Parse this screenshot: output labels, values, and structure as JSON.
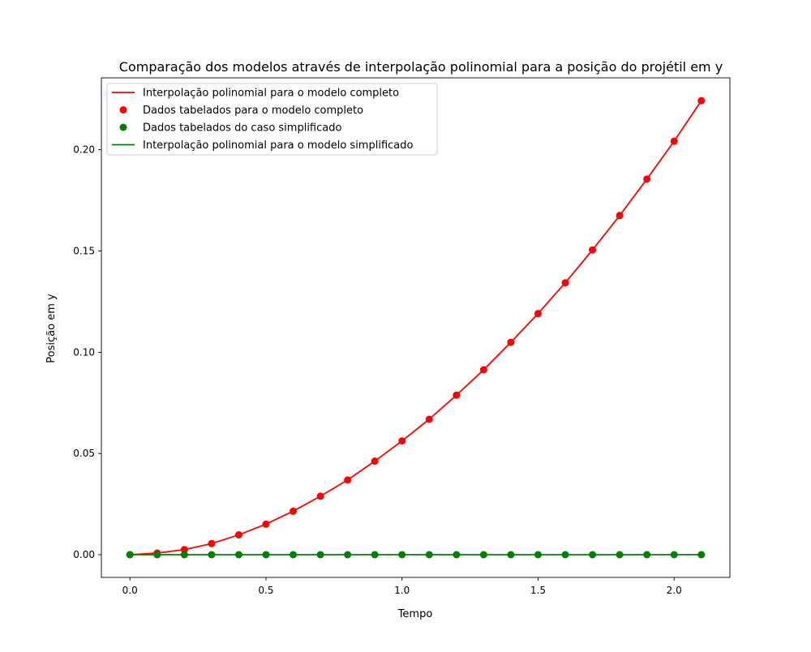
{
  "chart_data": {
    "type": "line",
    "title": "Comparação dos modelos através de interpolação polinomial para a posição do projétil em y",
    "xlabel": "Tempo",
    "ylabel": "Posição em y",
    "xlim": [
      -0.105,
      2.205
    ],
    "ylim": [
      -0.0112,
      0.2355
    ],
    "grid": false,
    "legend_position": "top-left",
    "x_ticks": [
      0.0,
      0.5,
      1.0,
      1.5,
      2.0
    ],
    "x_tick_labels": [
      "0.0",
      "0.5",
      "1.0",
      "1.5",
      "2.0"
    ],
    "y_ticks": [
      0.0,
      0.05,
      0.1,
      0.15,
      0.2
    ],
    "y_tick_labels": [
      "0.00",
      "0.05",
      "0.10",
      "0.15",
      "0.20"
    ],
    "x": [
      0.0,
      0.1,
      0.2,
      0.3,
      0.4,
      0.5,
      0.6,
      0.7,
      0.8,
      0.9,
      1.0,
      1.1,
      1.2,
      1.3,
      1.4,
      1.5,
      1.6,
      1.7,
      1.8,
      1.9,
      2.0,
      2.1
    ],
    "series": [
      {
        "name": "Interpolação polinomial para o modelo completo",
        "kind": "line",
        "color": "#ff0000",
        "values": [
          0.0,
          0.0008,
          0.0025,
          0.0055,
          0.0098,
          0.0151,
          0.0215,
          0.0289,
          0.0369,
          0.0462,
          0.0562,
          0.0669,
          0.0788,
          0.0913,
          0.1049,
          0.1191,
          0.1343,
          0.1505,
          0.1675,
          0.1855,
          0.2042,
          0.2242
        ]
      },
      {
        "name": "Dados tabelados para o modelo completo",
        "kind": "scatter",
        "color": "#ff0000",
        "values": [
          0.0,
          0.0008,
          0.0025,
          0.0055,
          0.0098,
          0.0151,
          0.0215,
          0.0289,
          0.0369,
          0.0462,
          0.0562,
          0.0669,
          0.0788,
          0.0913,
          0.1049,
          0.1191,
          0.1343,
          0.1505,
          0.1675,
          0.1855,
          0.2042,
          0.2242
        ]
      },
      {
        "name": "Dados tabelados do caso simplificado",
        "kind": "scatter",
        "color": "#008000",
        "values": [
          0,
          0,
          0,
          0,
          0,
          0,
          0,
          0,
          0,
          0,
          0,
          0,
          0,
          0,
          0,
          0,
          0,
          0,
          0,
          0,
          0,
          0
        ]
      },
      {
        "name": "Interpolação polinomial para o modelo simplificado",
        "kind": "line",
        "color": "#008000",
        "values": [
          0,
          0,
          0,
          0,
          0,
          0,
          0,
          0,
          0,
          0,
          0,
          0,
          0,
          0,
          0,
          0,
          0,
          0,
          0,
          0,
          0,
          0
        ]
      }
    ]
  }
}
